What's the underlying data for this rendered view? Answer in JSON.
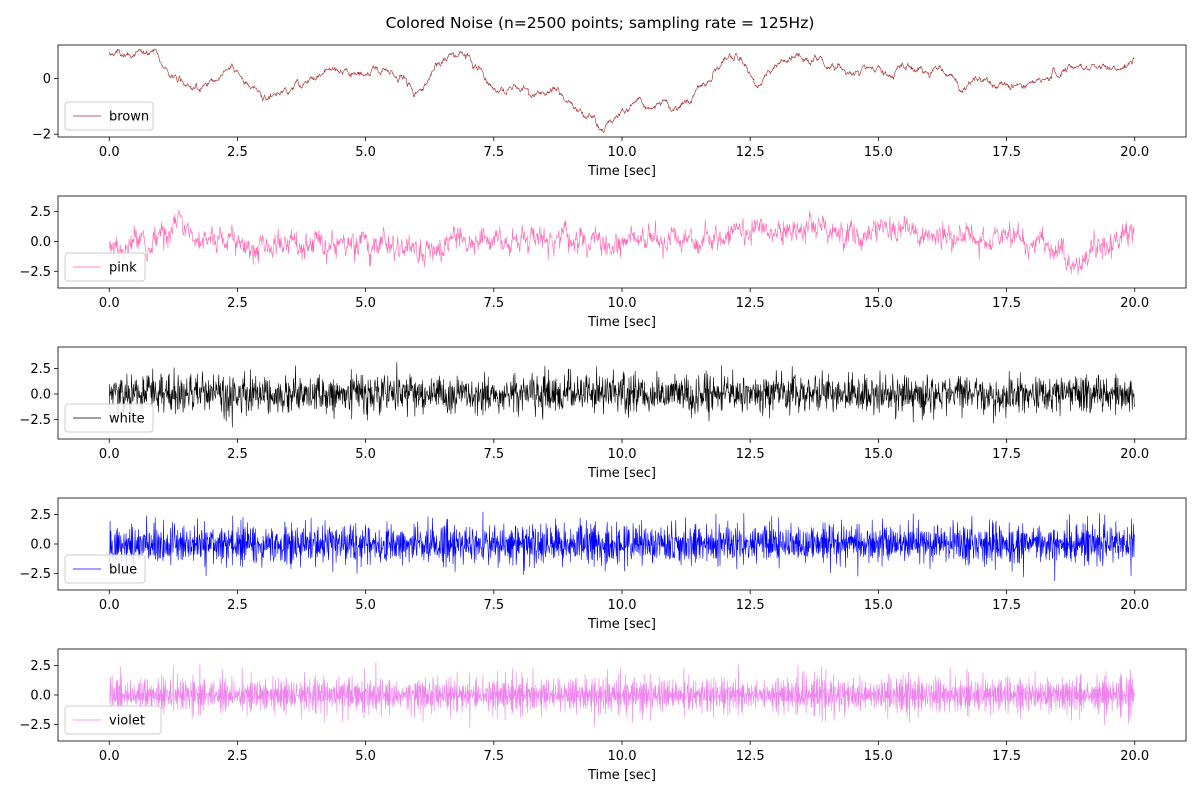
{
  "figure": {
    "title": "Colored Noise (n=2500 points; sampling rate = 125Hz)"
  },
  "chart_data": [
    {
      "type": "line",
      "series": [
        {
          "name": "brown",
          "color": "#a52a2a"
        }
      ],
      "legend": {
        "label": "brown",
        "position": "lower-left"
      },
      "n_points": 2500,
      "sampling_rate_hz": 125,
      "xlabel": "Time [sec]",
      "xlim": [
        -1.0,
        21.0
      ],
      "xticks": [
        0.0,
        2.5,
        5.0,
        7.5,
        10.0,
        12.5,
        15.0,
        17.5,
        20.0
      ],
      "xtick_labels": [
        "0.0",
        "2.5",
        "5.0",
        "7.5",
        "10.0",
        "12.5",
        "15.0",
        "17.5",
        "20.0"
      ],
      "ylim": [
        -2.1,
        1.2
      ],
      "yticks": [
        -2,
        0
      ],
      "ytick_labels": [
        "−2",
        "0"
      ],
      "trend": [
        [
          0.0,
          0.9
        ],
        [
          0.3,
          0.8
        ],
        [
          0.6,
          0.85
        ],
        [
          0.9,
          0.9
        ],
        [
          1.2,
          0.2
        ],
        [
          1.5,
          -0.3
        ],
        [
          1.8,
          -0.1
        ],
        [
          2.1,
          0.1
        ],
        [
          2.4,
          0.5
        ],
        [
          2.7,
          -0.1
        ],
        [
          3.0,
          -0.7
        ],
        [
          3.3,
          -0.4
        ],
        [
          3.6,
          -0.2
        ],
        [
          3.9,
          0.0
        ],
        [
          4.2,
          0.3
        ],
        [
          4.5,
          0.1
        ],
        [
          4.8,
          0.0
        ],
        [
          5.1,
          0.2
        ],
        [
          5.4,
          0.3
        ],
        [
          5.7,
          0.0
        ],
        [
          6.0,
          -0.4
        ],
        [
          6.3,
          0.3
        ],
        [
          6.6,
          0.8
        ],
        [
          6.9,
          0.8
        ],
        [
          7.2,
          0.6
        ],
        [
          7.5,
          -0.3
        ],
        [
          7.8,
          -0.2
        ],
        [
          8.1,
          -0.4
        ],
        [
          8.4,
          -0.6
        ],
        [
          8.7,
          -0.6
        ],
        [
          9.0,
          -1.1
        ],
        [
          9.3,
          -1.3
        ],
        [
          9.6,
          -1.8
        ],
        [
          9.9,
          -1.2
        ],
        [
          10.2,
          -1.0
        ],
        [
          10.5,
          -0.8
        ],
        [
          10.8,
          -1.0
        ],
        [
          11.1,
          -1.1
        ],
        [
          11.4,
          -0.7
        ],
        [
          11.7,
          -0.3
        ],
        [
          12.0,
          0.9
        ],
        [
          12.3,
          0.8
        ],
        [
          12.6,
          0.0
        ],
        [
          12.9,
          0.4
        ],
        [
          13.2,
          0.6
        ],
        [
          13.5,
          0.5
        ],
        [
          13.8,
          0.6
        ],
        [
          14.1,
          0.5
        ],
        [
          14.4,
          0.3
        ],
        [
          14.7,
          0.4
        ],
        [
          15.0,
          0.3
        ],
        [
          15.3,
          0.2
        ],
        [
          15.6,
          0.5
        ],
        [
          15.9,
          0.3
        ],
        [
          16.2,
          0.1
        ],
        [
          16.5,
          -0.1
        ],
        [
          16.8,
          0.0
        ],
        [
          17.1,
          -0.2
        ],
        [
          17.4,
          -0.2
        ],
        [
          17.7,
          -0.3
        ],
        [
          18.0,
          -0.2
        ],
        [
          18.3,
          0.0
        ],
        [
          18.6,
          0.2
        ],
        [
          18.9,
          0.3
        ],
        [
          19.2,
          0.4
        ],
        [
          19.5,
          0.3
        ],
        [
          19.8,
          0.4
        ],
        [
          20.0,
          0.7
        ]
      ]
    },
    {
      "type": "line",
      "series": [
        {
          "name": "pink",
          "color": "#ff69b4"
        }
      ],
      "legend": {
        "label": "pink",
        "position": "lower-left"
      },
      "n_points": 2500,
      "sampling_rate_hz": 125,
      "xlabel": "Time [sec]",
      "xlim": [
        -1.0,
        21.0
      ],
      "xticks": [
        0.0,
        2.5,
        5.0,
        7.5,
        10.0,
        12.5,
        15.0,
        17.5,
        20.0
      ],
      "xtick_labels": [
        "0.0",
        "2.5",
        "5.0",
        "7.5",
        "10.0",
        "12.5",
        "15.0",
        "17.5",
        "20.0"
      ],
      "ylim": [
        -3.9,
        3.8
      ],
      "yticks": [
        -2.5,
        0.0,
        2.5
      ],
      "ytick_labels": [
        "−2.5",
        "0.0",
        "2.5"
      ],
      "trend": [
        [
          0.0,
          -0.5
        ],
        [
          0.5,
          0.0
        ],
        [
          1.0,
          0.8
        ],
        [
          1.4,
          1.4
        ],
        [
          1.8,
          0.3
        ],
        [
          2.3,
          0.2
        ],
        [
          2.8,
          -0.6
        ],
        [
          3.3,
          -0.3
        ],
        [
          3.8,
          0.0
        ],
        [
          4.3,
          -0.4
        ],
        [
          4.8,
          -0.3
        ],
        [
          5.3,
          -0.6
        ],
        [
          5.8,
          -0.5
        ],
        [
          6.2,
          -1.0
        ],
        [
          6.7,
          0.0
        ],
        [
          7.2,
          0.3
        ],
        [
          7.7,
          0.3
        ],
        [
          8.2,
          0.2
        ],
        [
          8.7,
          0.5
        ],
        [
          9.2,
          0.2
        ],
        [
          9.7,
          -0.3
        ],
        [
          10.2,
          0.2
        ],
        [
          10.7,
          0.3
        ],
        [
          11.2,
          -0.2
        ],
        [
          11.7,
          0.3
        ],
        [
          12.2,
          0.5
        ],
        [
          12.7,
          0.8
        ],
        [
          13.2,
          1.0
        ],
        [
          13.7,
          1.2
        ],
        [
          14.2,
          0.5
        ],
        [
          14.7,
          0.0
        ],
        [
          15.2,
          1.5
        ],
        [
          15.7,
          0.8
        ],
        [
          16.2,
          0.4
        ],
        [
          16.7,
          0.2
        ],
        [
          17.2,
          0.0
        ],
        [
          17.7,
          0.1
        ],
        [
          18.2,
          0.0
        ],
        [
          18.6,
          -1.3
        ],
        [
          19.0,
          -1.2
        ],
        [
          19.5,
          0.0
        ],
        [
          20.0,
          0.8
        ]
      ]
    },
    {
      "type": "line",
      "series": [
        {
          "name": "white",
          "color": "#000000"
        }
      ],
      "legend": {
        "label": "white",
        "position": "lower-left"
      },
      "n_points": 2500,
      "sampling_rate_hz": 125,
      "xlabel": "Time [sec]",
      "xlim": [
        -1.0,
        21.0
      ],
      "xticks": [
        0.0,
        2.5,
        5.0,
        7.5,
        10.0,
        12.5,
        15.0,
        17.5,
        20.0
      ],
      "xtick_labels": [
        "0.0",
        "2.5",
        "5.0",
        "7.5",
        "10.0",
        "12.5",
        "15.0",
        "17.5",
        "20.0"
      ],
      "ylim": [
        -4.4,
        4.6
      ],
      "yticks": [
        -2.5,
        0.0,
        2.5
      ],
      "ytick_labels": [
        "−2.5",
        "0.0",
        "2.5"
      ],
      "trend": [
        [
          0.0,
          0.0
        ],
        [
          20.0,
          0.0
        ]
      ]
    },
    {
      "type": "line",
      "series": [
        {
          "name": "blue",
          "color": "#0000ff"
        }
      ],
      "legend": {
        "label": "blue",
        "position": "lower-left"
      },
      "n_points": 2500,
      "sampling_rate_hz": 125,
      "xlabel": "Time [sec]",
      "xlim": [
        -1.0,
        21.0
      ],
      "xticks": [
        0.0,
        2.5,
        5.0,
        7.5,
        10.0,
        12.5,
        15.0,
        17.5,
        20.0
      ],
      "xtick_labels": [
        "0.0",
        "2.5",
        "5.0",
        "7.5",
        "10.0",
        "12.5",
        "15.0",
        "17.5",
        "20.0"
      ],
      "ylim": [
        -3.9,
        3.9
      ],
      "yticks": [
        -2.5,
        0.0,
        2.5
      ],
      "ytick_labels": [
        "−2.5",
        "0.0",
        "2.5"
      ],
      "trend": [
        [
          0.0,
          0.0
        ],
        [
          20.0,
          0.0
        ]
      ]
    },
    {
      "type": "line",
      "series": [
        {
          "name": "violet",
          "color": "#ee82ee"
        }
      ],
      "legend": {
        "label": "violet",
        "position": "lower-left"
      },
      "n_points": 2500,
      "sampling_rate_hz": 125,
      "xlabel": "Time [sec]",
      "xlim": [
        -1.0,
        21.0
      ],
      "xticks": [
        0.0,
        2.5,
        5.0,
        7.5,
        10.0,
        12.5,
        15.0,
        17.5,
        20.0
      ],
      "xtick_labels": [
        "0.0",
        "2.5",
        "5.0",
        "7.5",
        "10.0",
        "12.5",
        "15.0",
        "17.5",
        "20.0"
      ],
      "ylim": [
        -3.9,
        3.9
      ],
      "yticks": [
        -2.5,
        0.0,
        2.5
      ],
      "ytick_labels": [
        "−2.5",
        "0.0",
        "2.5"
      ],
      "trend": [
        [
          0.0,
          0.0
        ],
        [
          20.0,
          0.0
        ]
      ]
    }
  ]
}
